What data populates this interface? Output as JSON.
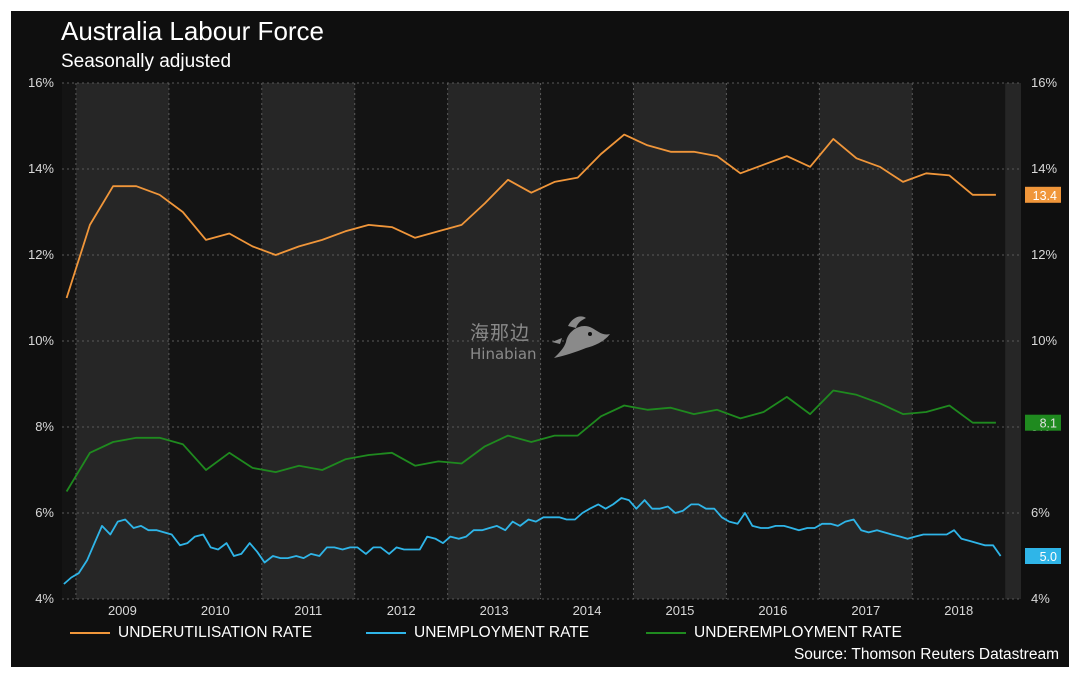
{
  "header": {
    "title": "Australia Labour Force",
    "subtitle": "Seasonally adjusted"
  },
  "source": "Source: Thomson Reuters Datastream",
  "watermark": {
    "cn": "海那边",
    "en": "Hinabian"
  },
  "colors": {
    "background": "#0f0f0f",
    "plot_band_dark": "#141414",
    "plot_band_light": "#262626",
    "underutilisation": "#f0963a",
    "unemployment": "#2fb5e8",
    "underemployment": "#1f8a1f",
    "text": "#ffffff",
    "axis_text": "#d9d9d9"
  },
  "chart_data": {
    "type": "line",
    "title": "Australia Labour Force",
    "subtitle": "Seasonally adjusted",
    "xlabel": "",
    "ylabel": "",
    "xlim": [
      2008.35,
      2018.67
    ],
    "ylim": [
      4,
      16
    ],
    "y_ticks": [
      4,
      6,
      8,
      10,
      12,
      14,
      16
    ],
    "y_tick_labels": [
      "4%",
      "6%",
      "8%",
      "10%",
      "12%",
      "14%",
      "16%"
    ],
    "x_ticks": [
      2009,
      2010,
      2011,
      2012,
      2013,
      2014,
      2015,
      2016,
      2017,
      2018
    ],
    "x_tick_labels": [
      "2009",
      "2010",
      "2011",
      "2012",
      "2013",
      "2014",
      "2015",
      "2016",
      "2017",
      "2018"
    ],
    "grid": true,
    "legend_position": "bottom-left",
    "series": [
      {
        "name": "UNDERUTILISATION RATE",
        "color": "#f0963a",
        "last_label": "13.4",
        "x": [
          2008.4,
          2008.65,
          2008.9,
          2009.15,
          2009.4,
          2009.65,
          2009.9,
          2010.15,
          2010.4,
          2010.65,
          2010.9,
          2011.15,
          2011.4,
          2011.65,
          2011.9,
          2012.15,
          2012.4,
          2012.65,
          2012.9,
          2013.15,
          2013.4,
          2013.65,
          2013.9,
          2014.15,
          2014.4,
          2014.65,
          2014.9,
          2015.15,
          2015.4,
          2015.65,
          2015.9,
          2016.15,
          2016.4,
          2016.65,
          2016.9,
          2017.15,
          2017.4,
          2017.65,
          2017.9,
          2018.15,
          2018.4
        ],
        "values": [
          11.0,
          12.7,
          13.6,
          13.6,
          13.4,
          13.0,
          12.35,
          12.5,
          12.2,
          12.0,
          12.2,
          12.35,
          12.55,
          12.7,
          12.65,
          12.4,
          12.55,
          12.7,
          13.2,
          13.75,
          13.45,
          13.7,
          13.8,
          14.35,
          14.8,
          14.55,
          14.4,
          14.4,
          14.3,
          13.9,
          14.1,
          14.3,
          14.05,
          14.7,
          14.25,
          14.05,
          13.7,
          13.9,
          13.85,
          13.4,
          13.4
        ]
      },
      {
        "name": "UNEMPLOYMENT RATE",
        "color": "#2fb5e8",
        "last_label": "5.0",
        "x": [
          2008.37,
          2008.45,
          2008.53,
          2008.62,
          2008.7,
          2008.78,
          2008.87,
          2008.95,
          2009.03,
          2009.12,
          2009.2,
          2009.28,
          2009.37,
          2009.45,
          2009.53,
          2009.62,
          2009.7,
          2009.78,
          2009.87,
          2009.95,
          2010.03,
          2010.12,
          2010.2,
          2010.28,
          2010.37,
          2010.45,
          2010.53,
          2010.62,
          2010.7,
          2010.78,
          2010.87,
          2010.95,
          2011.03,
          2011.12,
          2011.2,
          2011.28,
          2011.37,
          2011.45,
          2011.53,
          2011.62,
          2011.7,
          2011.78,
          2011.87,
          2011.95,
          2012.03,
          2012.12,
          2012.2,
          2012.28,
          2012.37,
          2012.45,
          2012.53,
          2012.62,
          2012.7,
          2012.78,
          2012.87,
          2012.95,
          2013.03,
          2013.12,
          2013.2,
          2013.28,
          2013.37,
          2013.45,
          2013.53,
          2013.62,
          2013.7,
          2013.78,
          2013.87,
          2013.95,
          2014.03,
          2014.12,
          2014.2,
          2014.28,
          2014.37,
          2014.45,
          2014.53,
          2014.62,
          2014.7,
          2014.78,
          2014.87,
          2014.95,
          2015.03,
          2015.12,
          2015.2,
          2015.28,
          2015.37,
          2015.45,
          2015.53,
          2015.62,
          2015.7,
          2015.78,
          2015.87,
          2015.95,
          2016.03,
          2016.12,
          2016.2,
          2016.28,
          2016.37,
          2016.45,
          2016.53,
          2016.62,
          2016.7,
          2016.78,
          2016.87,
          2016.95,
          2017.03,
          2017.12,
          2017.2,
          2017.28,
          2017.37,
          2017.45,
          2017.53,
          2017.62,
          2017.7,
          2017.78,
          2017.87,
          2017.95,
          2018.03,
          2018.12,
          2018.2,
          2018.28,
          2018.37,
          2018.45
        ],
        "values": [
          4.35,
          4.5,
          4.6,
          4.9,
          5.3,
          5.7,
          5.5,
          5.8,
          5.85,
          5.65,
          5.7,
          5.6,
          5.6,
          5.55,
          5.5,
          5.25,
          5.3,
          5.45,
          5.5,
          5.2,
          5.15,
          5.3,
          5.0,
          5.05,
          5.3,
          5.1,
          4.85,
          5.0,
          4.95,
          4.95,
          5.0,
          4.95,
          5.05,
          5.0,
          5.2,
          5.2,
          5.15,
          5.2,
          5.2,
          5.05,
          5.2,
          5.2,
          5.05,
          5.2,
          5.15,
          5.15,
          5.15,
          5.45,
          5.4,
          5.3,
          5.45,
          5.4,
          5.45,
          5.6,
          5.6,
          5.65,
          5.7,
          5.6,
          5.8,
          5.7,
          5.85,
          5.8,
          5.9,
          5.9,
          5.9,
          5.85,
          5.85,
          6.0,
          6.1,
          6.2,
          6.1,
          6.2,
          6.35,
          6.3,
          6.1,
          6.3,
          6.1,
          6.1,
          6.15,
          6.0,
          6.05,
          6.2,
          6.2,
          6.1,
          6.1,
          5.9,
          5.8,
          5.75,
          6.0,
          5.7,
          5.65,
          5.65,
          5.7,
          5.7,
          5.65,
          5.6,
          5.65,
          5.65,
          5.75,
          5.75,
          5.7,
          5.8,
          5.85,
          5.6,
          5.55,
          5.6,
          5.55,
          5.5,
          5.45,
          5.4,
          5.45,
          5.5,
          5.5,
          5.5,
          5.5,
          5.6,
          5.4,
          5.35,
          5.3,
          5.25,
          5.25,
          5.0
        ]
      },
      {
        "name": "UNDEREMPLOYMENT RATE",
        "color": "#1f8a1f",
        "last_label": "8.1",
        "x": [
          2008.4,
          2008.65,
          2008.9,
          2009.15,
          2009.4,
          2009.65,
          2009.9,
          2010.15,
          2010.4,
          2010.65,
          2010.9,
          2011.15,
          2011.4,
          2011.65,
          2011.9,
          2012.15,
          2012.4,
          2012.65,
          2012.9,
          2013.15,
          2013.4,
          2013.65,
          2013.9,
          2014.15,
          2014.4,
          2014.65,
          2014.9,
          2015.15,
          2015.4,
          2015.65,
          2015.9,
          2016.15,
          2016.4,
          2016.65,
          2016.9,
          2017.15,
          2017.4,
          2017.65,
          2017.9,
          2018.15,
          2018.4
        ],
        "values": [
          6.5,
          7.4,
          7.65,
          7.75,
          7.75,
          7.6,
          7.0,
          7.4,
          7.05,
          6.95,
          7.1,
          7.0,
          7.25,
          7.35,
          7.4,
          7.1,
          7.2,
          7.15,
          7.55,
          7.8,
          7.65,
          7.8,
          7.8,
          8.25,
          8.5,
          8.4,
          8.45,
          8.3,
          8.4,
          8.2,
          8.35,
          8.7,
          8.3,
          8.85,
          8.75,
          8.55,
          8.3,
          8.35,
          8.5,
          8.1,
          8.1
        ]
      }
    ]
  }
}
